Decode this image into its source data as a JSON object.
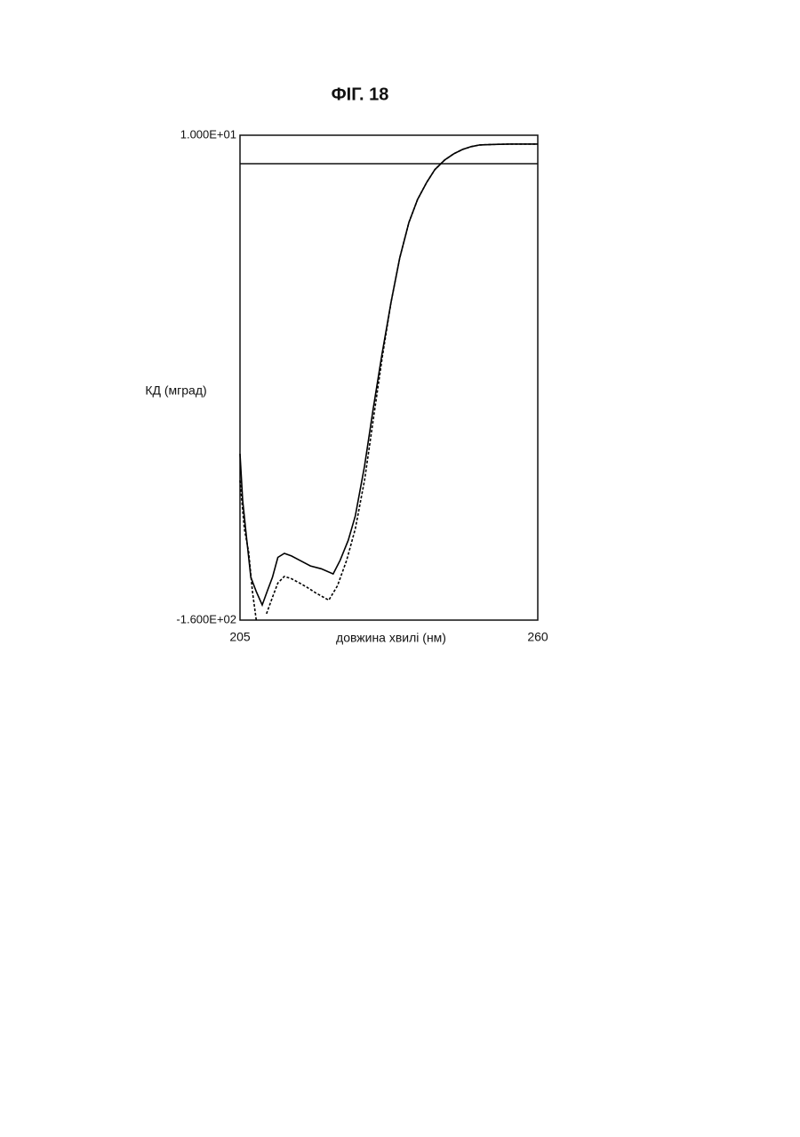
{
  "chart_data": {
    "type": "line",
    "title": "ФІГ. 18",
    "xlabel": "довжина хвилі (нм)",
    "ylabel": "КД (мград)",
    "xlim": [
      205,
      260
    ],
    "ylim": [
      -160,
      10
    ],
    "xticks": [
      205,
      260
    ],
    "yticks": [
      {
        "value": 10,
        "label": "1.000E+01"
      },
      {
        "value": -160,
        "label": "-1.600E+02"
      }
    ],
    "reference_line": 0,
    "series": [
      {
        "color": "#000000",
        "style": "solid",
        "x": [
          205,
          205.5,
          206.2,
          207,
          208,
          209.1,
          210,
          211,
          212,
          213.2,
          214.5,
          216,
          218,
          220,
          222.2,
          223.5,
          225,
          226.3,
          228,
          229.6,
          231.2,
          232.9,
          234.5,
          236.2,
          237.8,
          239.5,
          241,
          242.8,
          244.5,
          246.1,
          247.7,
          249.3,
          252,
          255,
          260
        ],
        "values": [
          -101.7,
          -118,
          -131,
          -145,
          -150,
          -154.7,
          -150,
          -145,
          -138,
          -136.6,
          -137.5,
          -139,
          -141,
          -142,
          -143.8,
          -139,
          -132,
          -123.5,
          -106,
          -86,
          -67,
          -48.6,
          -33,
          -20.6,
          -12.5,
          -6.5,
          -2,
          1.3,
          3.5,
          5,
          6,
          6.6,
          6.8,
          6.9,
          6.9
        ]
      },
      {
        "color": "#000000",
        "style": "dashed",
        "x": [
          205,
          205.8,
          206.6,
          207.3,
          208,
          208.8,
          209.9,
          211,
          212,
          213.2,
          214.5,
          216,
          217.3,
          219,
          221.4,
          223,
          224.7,
          226.3,
          228,
          229.6,
          231.3,
          232.9,
          234.5,
          236.2,
          237.8,
          239.5,
          241,
          242.8,
          244.5,
          246.1,
          247.7,
          249.3,
          252,
          255,
          260
        ],
        "values": [
          -111,
          -128,
          -136,
          -150,
          -160,
          null,
          -157.8,
          -152,
          -147,
          -144.7,
          -145.5,
          -147,
          -148.4,
          -150.5,
          -153,
          -148,
          -139,
          -128,
          -111,
          -90,
          -67.5,
          -48.6,
          -33,
          -20.6,
          -12.5,
          -6.5,
          -2,
          1.3,
          3.5,
          5,
          6,
          6.6,
          6.8,
          6.9,
          6.9
        ]
      }
    ]
  }
}
